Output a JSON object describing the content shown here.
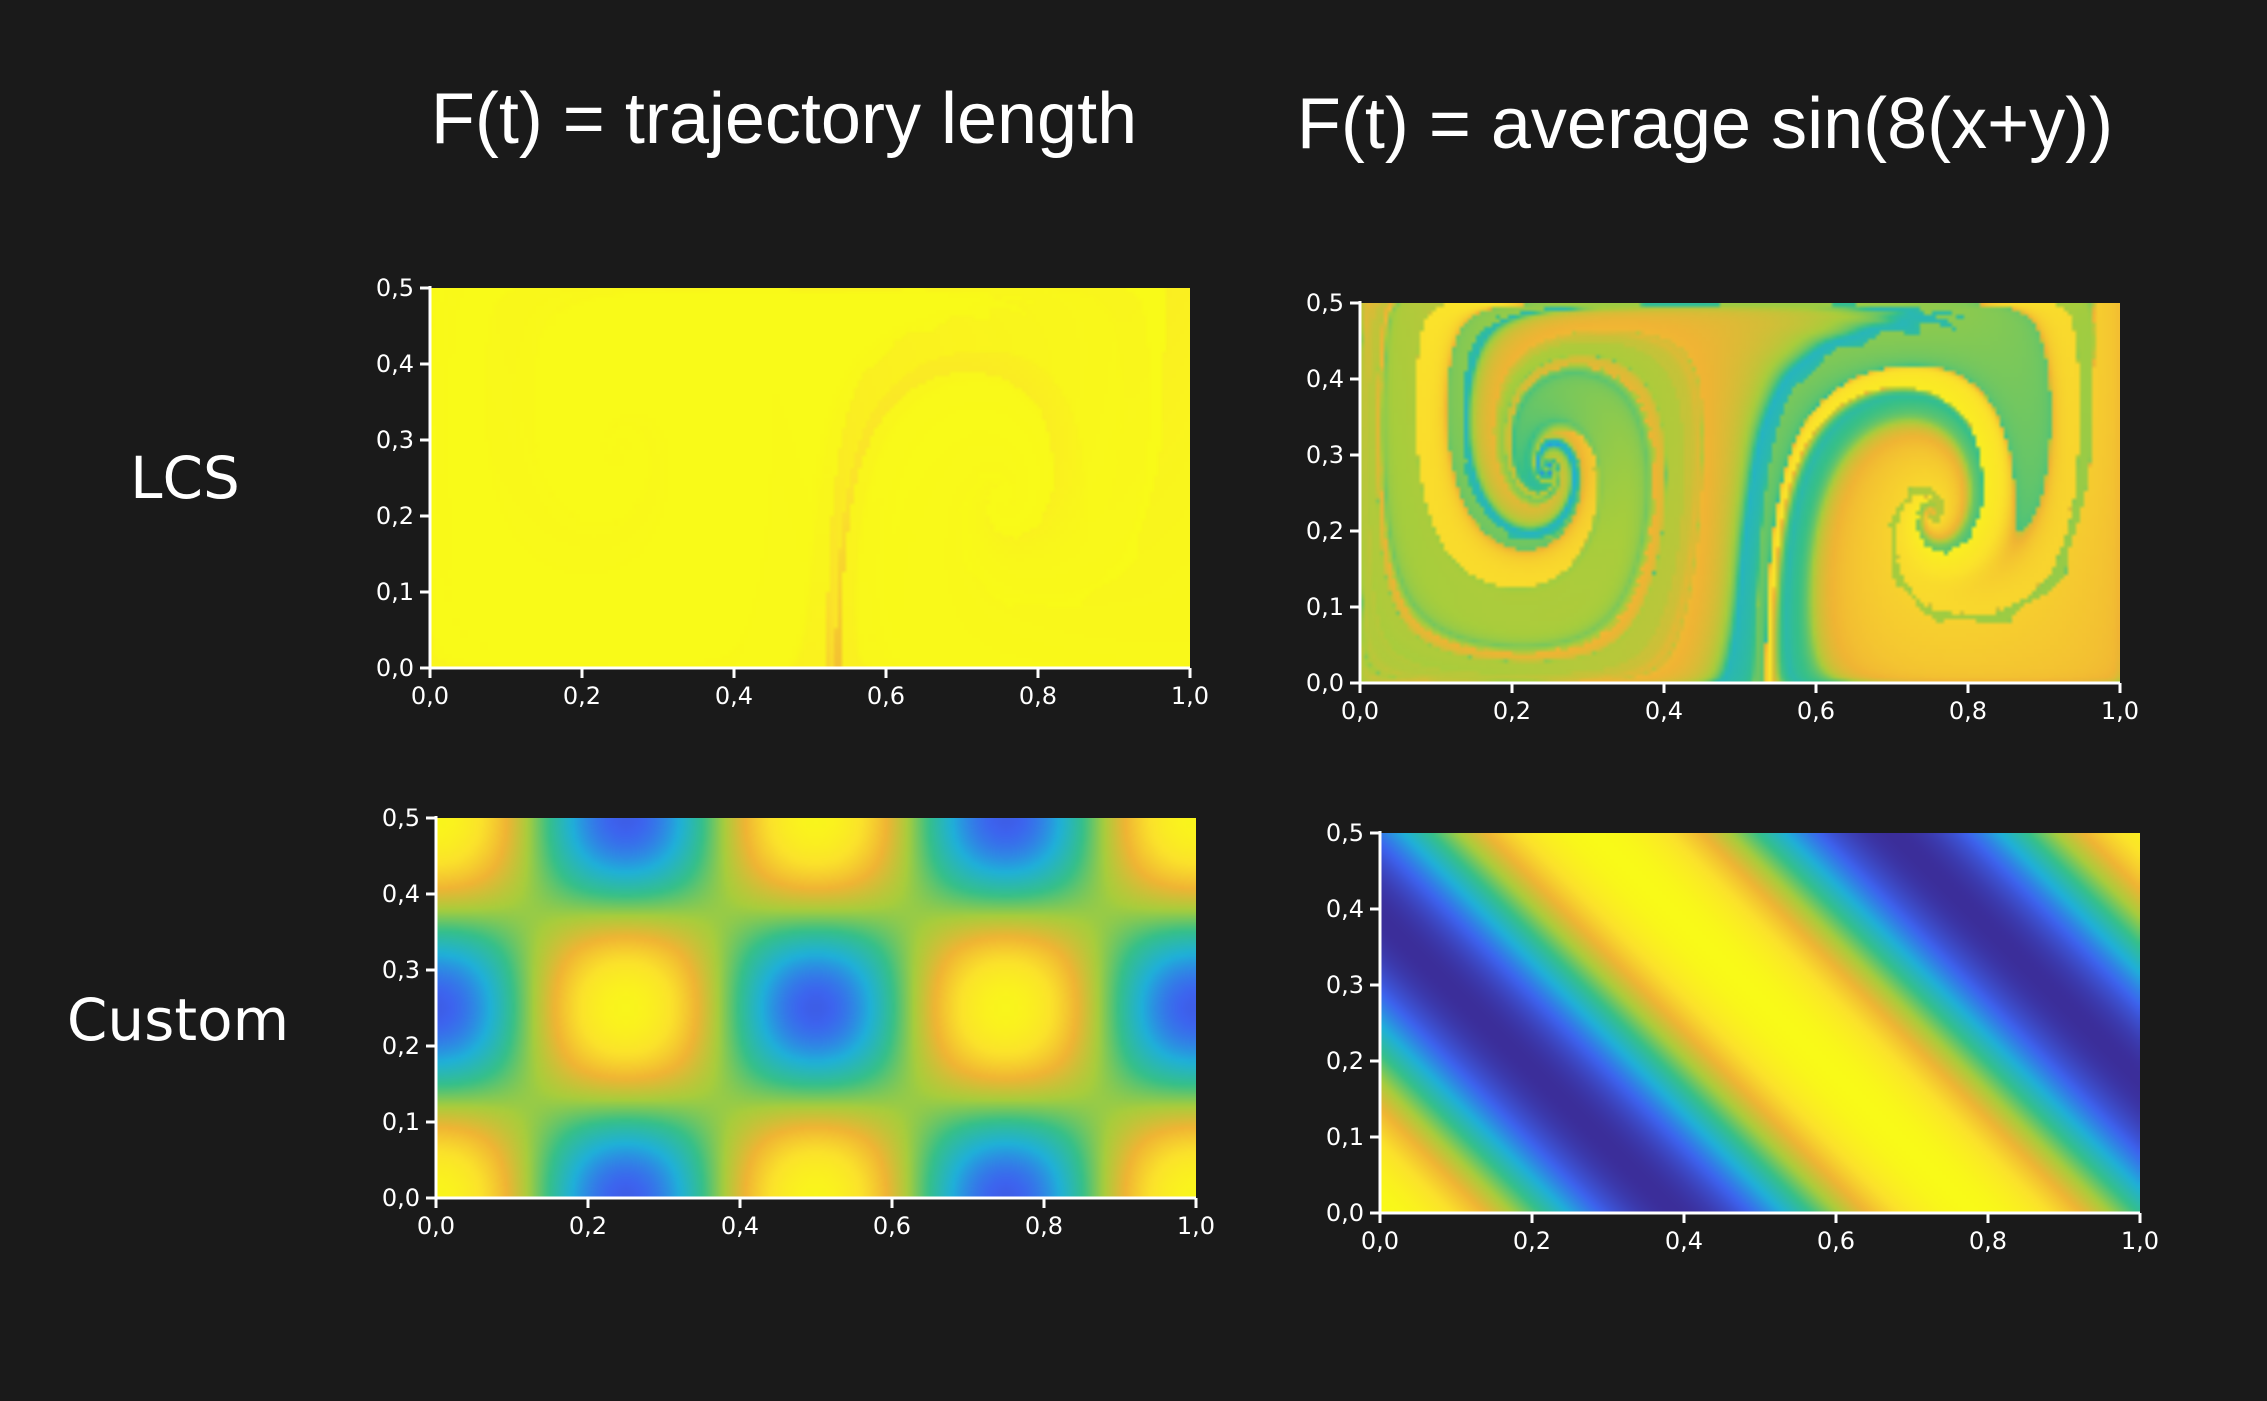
{
  "column_titles": [
    "F(t) = trajectory length",
    "F(t) = average sin(8(x+y))"
  ],
  "row_labels": [
    "LCS",
    "Custom"
  ],
  "colormap": [
    "#3b2e9a",
    "#3d63ef",
    "#1fb0d9",
    "#36c089",
    "#a8cd3c",
    "#f0b434",
    "#fbe22b",
    "#f9fa18"
  ],
  "chart_data": [
    {
      "type": "heatmap",
      "row": "LCS",
      "column": "F(t) = trajectory length",
      "field": "trajectory length",
      "xlim": [
        0.0,
        1.0
      ],
      "ylim": [
        0.0,
        0.5
      ],
      "x_ticks": [
        "0,0",
        "0,2",
        "0,4",
        "0,6",
        "0,8",
        "1,0"
      ],
      "y_ticks": [
        "0,0",
        "0,1",
        "0,2",
        "0,3",
        "0,4",
        "0,5"
      ],
      "grid": false
    },
    {
      "type": "heatmap",
      "row": "LCS",
      "column": "F(t) = average sin(8(x+y))",
      "field": "average sin(8(x+y))",
      "xlim": [
        0.0,
        1.0
      ],
      "ylim": [
        0.0,
        0.5
      ],
      "x_ticks": [
        "0,0",
        "0,2",
        "0,4",
        "0,6",
        "0,8",
        "1,0"
      ],
      "y_ticks": [
        "0,0",
        "0,1",
        "0,2",
        "0,3",
        "0,4",
        "0,5"
      ],
      "grid": false
    },
    {
      "type": "heatmap",
      "row": "Custom",
      "column": "F(t) = trajectory length",
      "field": "trajectory length",
      "xlim": [
        0.0,
        1.0
      ],
      "ylim": [
        0.0,
        0.5
      ],
      "x_ticks": [
        "0,0",
        "0,2",
        "0,4",
        "0,6",
        "0,8",
        "1,0"
      ],
      "y_ticks": [
        "0,0",
        "0,1",
        "0,2",
        "0,3",
        "0,4",
        "0,5"
      ],
      "grid": false
    },
    {
      "type": "heatmap",
      "row": "Custom",
      "column": "F(t) = average sin(8(x+y))",
      "field": "average sin(8(x+y))",
      "xlim": [
        0.0,
        1.0
      ],
      "ylim": [
        0.0,
        0.5
      ],
      "x_ticks": [
        "0,0",
        "0,2",
        "0,4",
        "0,6",
        "0,8",
        "1,0"
      ],
      "y_ticks": [
        "0,0",
        "0,1",
        "0,2",
        "0,3",
        "0,4",
        "0,5"
      ],
      "grid": false
    }
  ]
}
